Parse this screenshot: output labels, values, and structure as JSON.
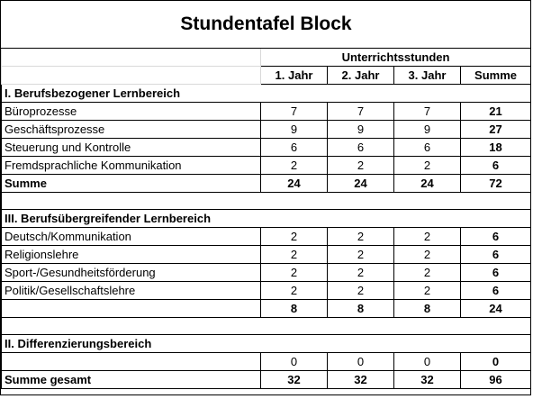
{
  "title": "Stundentafel Block",
  "header": {
    "group_label": "Unterrichtsstunden",
    "columns": [
      "1. Jahr",
      "2. Jahr",
      "3. Jahr",
      "Summe"
    ]
  },
  "sections": [
    {
      "heading": "I. Berufsbezogener Lernbereich",
      "rows": [
        {
          "label": "Büroprozesse",
          "values": [
            "7",
            "7",
            "7",
            "21"
          ]
        },
        {
          "label": "Geschäftsprozesse",
          "values": [
            "9",
            "9",
            "9",
            "27"
          ]
        },
        {
          "label": "Steuerung und Kontrolle",
          "values": [
            "6",
            "6",
            "6",
            "18"
          ]
        },
        {
          "label": "Fremdsprachliche Kommunikation",
          "values": [
            "2",
            "2",
            "2",
            "6"
          ]
        }
      ],
      "total": {
        "label": "Summe",
        "values": [
          "24",
          "24",
          "24",
          "72"
        ]
      }
    },
    {
      "heading": "III. Berufsübergreifender Lernbereich",
      "rows": [
        {
          "label": "Deutsch/Kommunikation",
          "values": [
            "2",
            "2",
            "2",
            "6"
          ]
        },
        {
          "label": "Religionslehre",
          "values": [
            "2",
            "2",
            "2",
            "6"
          ]
        },
        {
          "label": "Sport-/Gesundheitsförderung",
          "values": [
            "2",
            "2",
            "2",
            "6"
          ]
        },
        {
          "label": "Politik/Gesellschaftslehre",
          "values": [
            "2",
            "2",
            "2",
            "6"
          ]
        }
      ],
      "total": {
        "label": "",
        "values": [
          "8",
          "8",
          "8",
          "24"
        ]
      }
    },
    {
      "heading": "II. Differenzierungsbereich",
      "rows": [
        {
          "label": "",
          "values": [
            "0",
            "0",
            "0",
            "0"
          ]
        }
      ]
    }
  ],
  "grand_total": {
    "label": "Summe gesamt",
    "values": [
      "32",
      "32",
      "32",
      "96"
    ]
  }
}
